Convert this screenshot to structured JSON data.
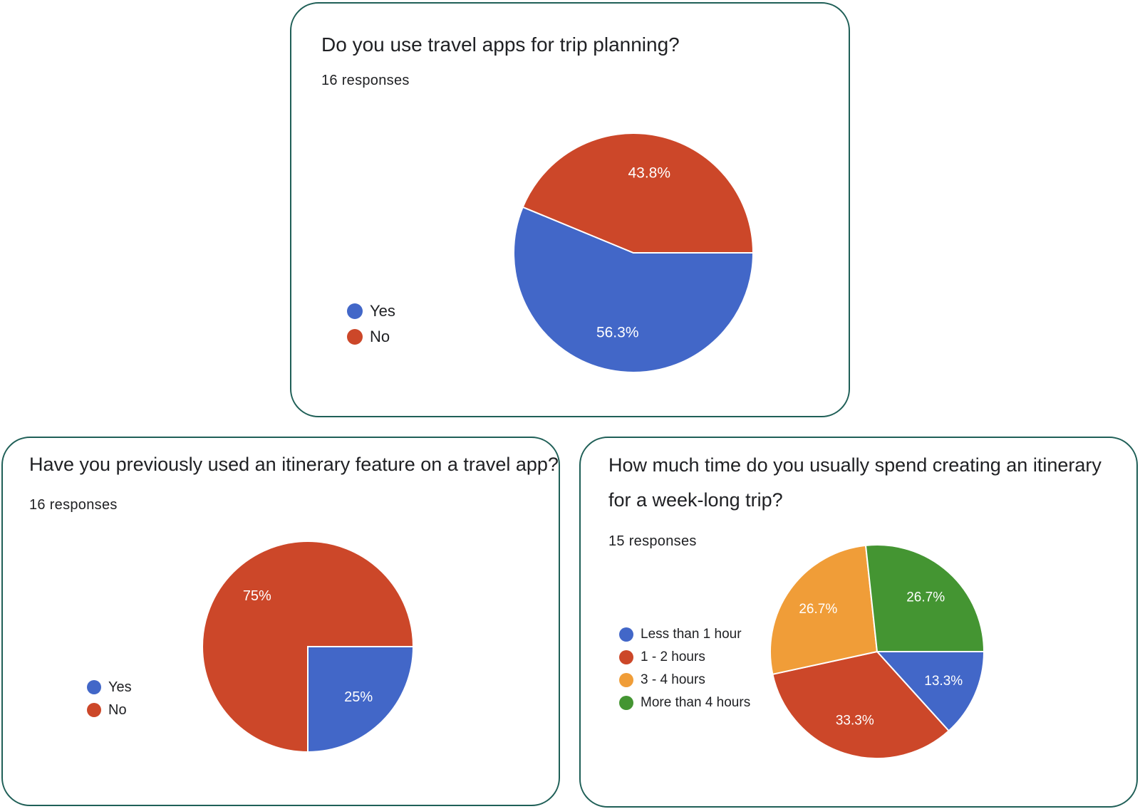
{
  "chart_data": [
    {
      "type": "pie",
      "title": "Do you use travel apps for trip planning?",
      "subtitle": "16 responses",
      "categories": [
        "Yes",
        "No"
      ],
      "values": [
        56.3,
        43.8
      ],
      "labels": [
        "56.3%",
        "43.8%"
      ],
      "colors": [
        "#4267c8",
        "#cc4729"
      ],
      "legend": "left"
    },
    {
      "type": "pie",
      "title": "Have you previously used an itinerary feature on a travel app?",
      "subtitle": "16 responses",
      "categories": [
        "Yes",
        "No"
      ],
      "values": [
        25,
        75
      ],
      "labels": [
        "25%",
        "75%"
      ],
      "colors": [
        "#4267c8",
        "#cc4729"
      ],
      "legend": "left"
    },
    {
      "type": "pie",
      "title": "How much time do you usually spend creating an itinerary for a week-long trip?",
      "subtitle": "15 responses",
      "categories": [
        "Less than 1 hour",
        "1 - 2 hours",
        "3 - 4 hours",
        "More than 4 hours"
      ],
      "values": [
        13.3,
        33.3,
        26.7,
        26.7
      ],
      "labels": [
        "13.3%",
        "33.3%",
        "26.7%",
        "26.7%"
      ],
      "colors": [
        "#4267c8",
        "#cc4729",
        "#f09d38",
        "#449532"
      ],
      "legend": "left"
    }
  ]
}
